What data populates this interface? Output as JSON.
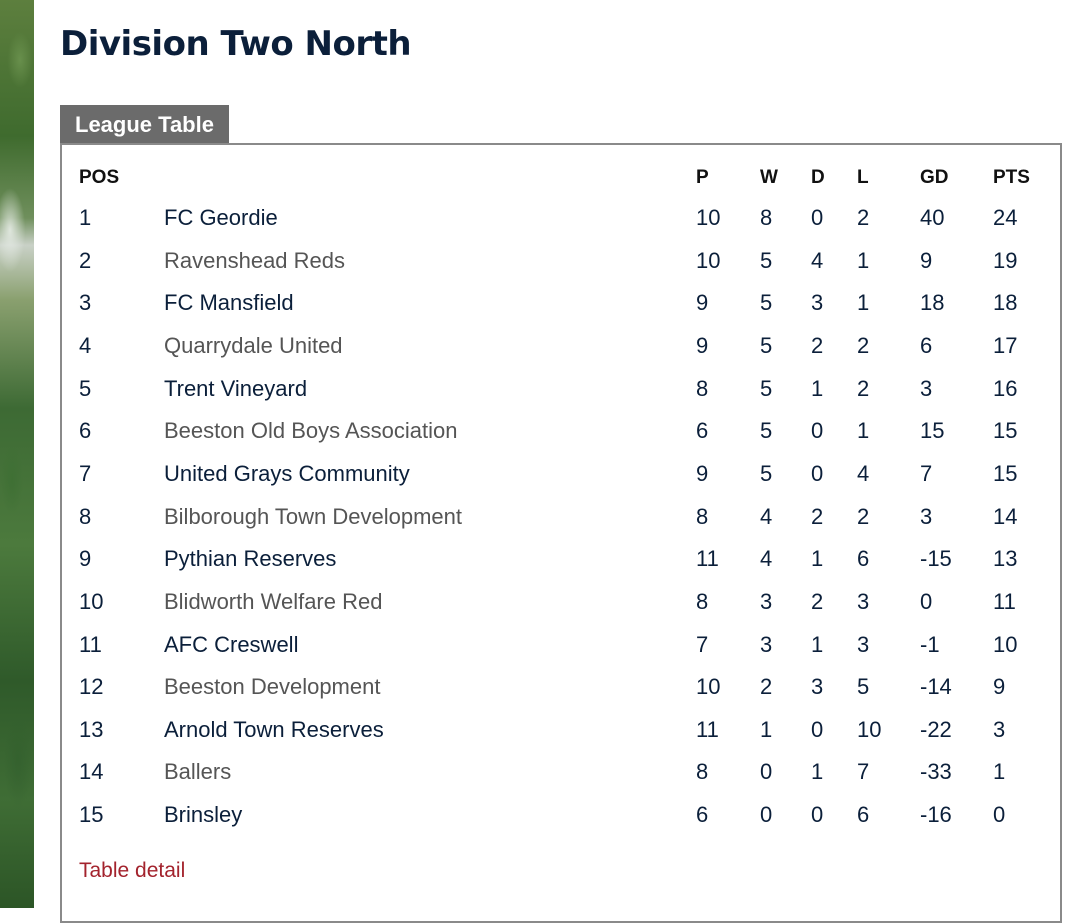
{
  "page": {
    "title": "Division Two North"
  },
  "tab": {
    "label": "League Table"
  },
  "table": {
    "headers": {
      "pos": "POS",
      "team": "",
      "p": "P",
      "w": "W",
      "d": "D",
      "l": "L",
      "gd": "GD",
      "pts": "PTS"
    },
    "rows": [
      {
        "pos": "1",
        "team": "FC Geordie",
        "p": "10",
        "w": "8",
        "d": "0",
        "l": "2",
        "gd": "40",
        "pts": "24"
      },
      {
        "pos": "2",
        "team": "Ravenshead Reds",
        "p": "10",
        "w": "5",
        "d": "4",
        "l": "1",
        "gd": "9",
        "pts": "19"
      },
      {
        "pos": "3",
        "team": "FC Mansfield",
        "p": "9",
        "w": "5",
        "d": "3",
        "l": "1",
        "gd": "18",
        "pts": "18"
      },
      {
        "pos": "4",
        "team": "Quarrydale United",
        "p": "9",
        "w": "5",
        "d": "2",
        "l": "2",
        "gd": "6",
        "pts": "17"
      },
      {
        "pos": "5",
        "team": "Trent Vineyard",
        "p": "8",
        "w": "5",
        "d": "1",
        "l": "2",
        "gd": "3",
        "pts": "16"
      },
      {
        "pos": "6",
        "team": "Beeston Old Boys Association",
        "p": "6",
        "w": "5",
        "d": "0",
        "l": "1",
        "gd": "15",
        "pts": "15"
      },
      {
        "pos": "7",
        "team": "United Grays Community",
        "p": "9",
        "w": "5",
        "d": "0",
        "l": "4",
        "gd": "7",
        "pts": "15"
      },
      {
        "pos": "8",
        "team": "Bilborough Town Development",
        "p": "8",
        "w": "4",
        "d": "2",
        "l": "2",
        "gd": "3",
        "pts": "14"
      },
      {
        "pos": "9",
        "team": "Pythian Reserves",
        "p": "11",
        "w": "4",
        "d": "1",
        "l": "6",
        "gd": "-15",
        "pts": "13"
      },
      {
        "pos": "10",
        "team": "Blidworth Welfare Red",
        "p": "8",
        "w": "3",
        "d": "2",
        "l": "3",
        "gd": "0",
        "pts": "11"
      },
      {
        "pos": "11",
        "team": "AFC Creswell",
        "p": "7",
        "w": "3",
        "d": "1",
        "l": "3",
        "gd": "-1",
        "pts": "10"
      },
      {
        "pos": "12",
        "team": "Beeston Development",
        "p": "10",
        "w": "2",
        "d": "3",
        "l": "5",
        "gd": "-14",
        "pts": "9"
      },
      {
        "pos": "13",
        "team": "Arnold Town Reserves",
        "p": "11",
        "w": "1",
        "d": "0",
        "l": "10",
        "gd": "-22",
        "pts": "3"
      },
      {
        "pos": "14",
        "team": "Ballers",
        "p": "8",
        "w": "0",
        "d": "1",
        "l": "7",
        "gd": "-33",
        "pts": "1"
      },
      {
        "pos": "15",
        "team": "Brinsley",
        "p": "6",
        "w": "0",
        "d": "0",
        "l": "6",
        "gd": "-16",
        "pts": "0"
      }
    ]
  },
  "links": {
    "table_detail": "Table detail"
  },
  "colors": {
    "title": "#0b1f3a",
    "tab_background": "#6b6b6b",
    "link": "#a3232d",
    "alt_team_text": "#555555"
  }
}
